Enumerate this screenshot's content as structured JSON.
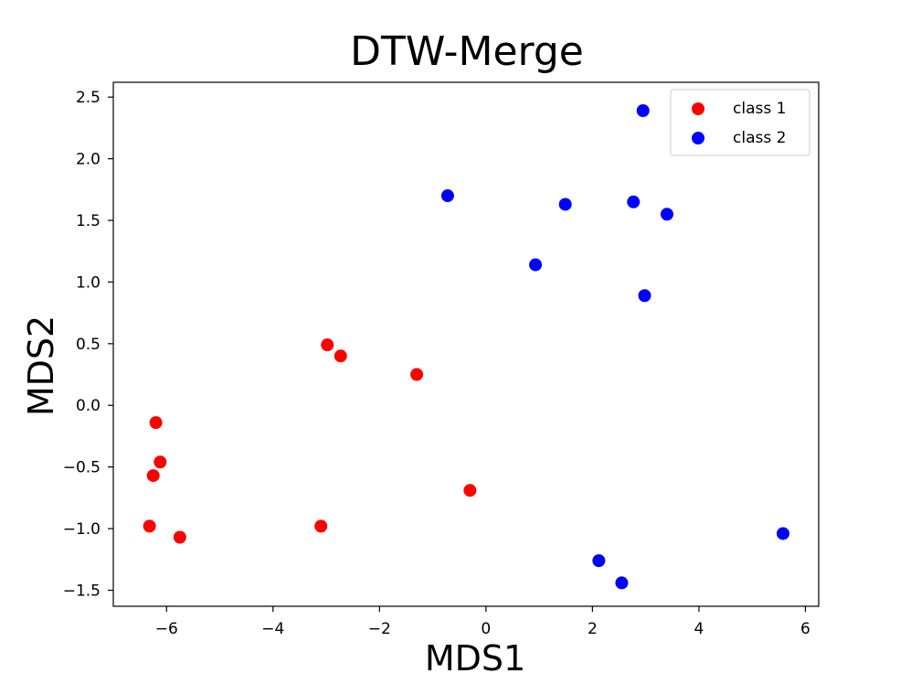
{
  "chart_data": {
    "type": "scatter",
    "title": "DTW-Merge",
    "xlabel": "MDS1",
    "ylabel": "MDS2",
    "xlim": [
      -7.0,
      6.25
    ],
    "ylim": [
      -1.63,
      2.62
    ],
    "xticks": [
      -6,
      -4,
      -2,
      0,
      2,
      4,
      6
    ],
    "xtick_labels": [
      "−6",
      "−4",
      "−2",
      "0",
      "2",
      "4",
      "6"
    ],
    "yticks": [
      -1.5,
      -1.0,
      -0.5,
      0.0,
      0.5,
      1.0,
      1.5,
      2.0,
      2.5
    ],
    "ytick_labels": [
      "−1.5",
      "−1.0",
      "−0.5",
      "0.0",
      "0.5",
      "1.0",
      "1.5",
      "2.0",
      "2.5"
    ],
    "grid": false,
    "legend_position": "top-right",
    "series": [
      {
        "name": "class 1",
        "color": "#ff0000",
        "points": [
          {
            "x": -6.2,
            "y": -0.14
          },
          {
            "x": -6.12,
            "y": -0.46
          },
          {
            "x": -6.25,
            "y": -0.57
          },
          {
            "x": -6.32,
            "y": -0.98
          },
          {
            "x": -5.75,
            "y": -1.07
          },
          {
            "x": -3.1,
            "y": -0.98
          },
          {
            "x": -2.98,
            "y": 0.49
          },
          {
            "x": -2.73,
            "y": 0.4
          },
          {
            "x": -1.3,
            "y": 0.25
          },
          {
            "x": -0.3,
            "y": -0.69
          }
        ]
      },
      {
        "name": "class 2",
        "color": "#0000ff",
        "points": [
          {
            "x": -0.72,
            "y": 1.7
          },
          {
            "x": 0.93,
            "y": 1.14
          },
          {
            "x": 1.49,
            "y": 1.63
          },
          {
            "x": 2.77,
            "y": 1.65
          },
          {
            "x": 2.95,
            "y": 2.39
          },
          {
            "x": 2.98,
            "y": 0.89
          },
          {
            "x": 3.4,
            "y": 1.55
          },
          {
            "x": 2.12,
            "y": -1.26
          },
          {
            "x": 2.55,
            "y": -1.44
          },
          {
            "x": 5.58,
            "y": -1.04
          }
        ]
      }
    ]
  }
}
